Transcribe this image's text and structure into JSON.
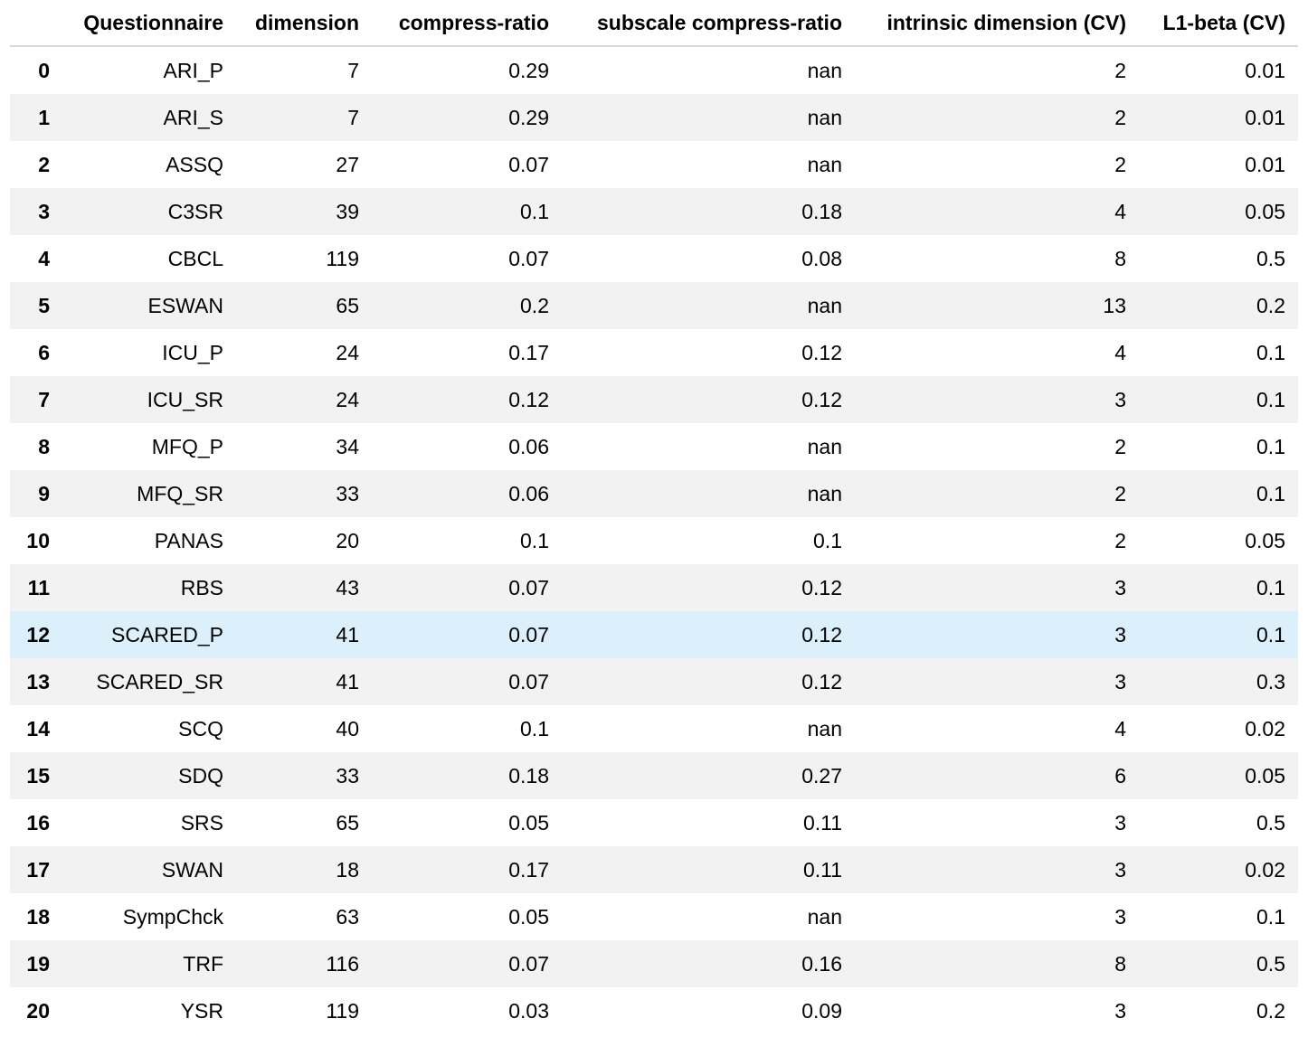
{
  "table": {
    "columns": [
      "",
      "Questionnaire",
      "dimension",
      "compress-ratio",
      "subscale compress-ratio",
      "intrinsic dimension (CV)",
      "L1-beta (CV)"
    ],
    "rows": [
      [
        "0",
        "ARI_P",
        "7",
        "0.29",
        "nan",
        "2",
        "0.01"
      ],
      [
        "1",
        "ARI_S",
        "7",
        "0.29",
        "nan",
        "2",
        "0.01"
      ],
      [
        "2",
        "ASSQ",
        "27",
        "0.07",
        "nan",
        "2",
        "0.01"
      ],
      [
        "3",
        "C3SR",
        "39",
        "0.1",
        "0.18",
        "4",
        "0.05"
      ],
      [
        "4",
        "CBCL",
        "119",
        "0.07",
        "0.08",
        "8",
        "0.5"
      ],
      [
        "5",
        "ESWAN",
        "65",
        "0.2",
        "nan",
        "13",
        "0.2"
      ],
      [
        "6",
        "ICU_P",
        "24",
        "0.17",
        "0.12",
        "4",
        "0.1"
      ],
      [
        "7",
        "ICU_SR",
        "24",
        "0.12",
        "0.12",
        "3",
        "0.1"
      ],
      [
        "8",
        "MFQ_P",
        "34",
        "0.06",
        "nan",
        "2",
        "0.1"
      ],
      [
        "9",
        "MFQ_SR",
        "33",
        "0.06",
        "nan",
        "2",
        "0.1"
      ],
      [
        "10",
        "PANAS",
        "20",
        "0.1",
        "0.1",
        "2",
        "0.05"
      ],
      [
        "11",
        "RBS",
        "43",
        "0.07",
        "0.12",
        "3",
        "0.1"
      ],
      [
        "12",
        "SCARED_P",
        "41",
        "0.07",
        "0.12",
        "3",
        "0.1"
      ],
      [
        "13",
        "SCARED_SR",
        "41",
        "0.07",
        "0.12",
        "3",
        "0.3"
      ],
      [
        "14",
        "SCQ",
        "40",
        "0.1",
        "nan",
        "4",
        "0.02"
      ],
      [
        "15",
        "SDQ",
        "33",
        "0.18",
        "0.27",
        "6",
        "0.05"
      ],
      [
        "16",
        "SRS",
        "65",
        "0.05",
        "0.11",
        "3",
        "0.5"
      ],
      [
        "17",
        "SWAN",
        "18",
        "0.17",
        "0.11",
        "3",
        "0.02"
      ],
      [
        "18",
        "SympChck",
        "63",
        "0.05",
        "nan",
        "3",
        "0.1"
      ],
      [
        "19",
        "TRF",
        "116",
        "0.07",
        "0.16",
        "8",
        "0.5"
      ],
      [
        "20",
        "YSR",
        "119",
        "0.03",
        "0.09",
        "3",
        "0.2"
      ]
    ],
    "hovered_row_index": 12
  },
  "colors": {
    "stripe": "#f2f2f2",
    "hover": "#dcf0fb",
    "header_rule": "#d9d9d9"
  }
}
